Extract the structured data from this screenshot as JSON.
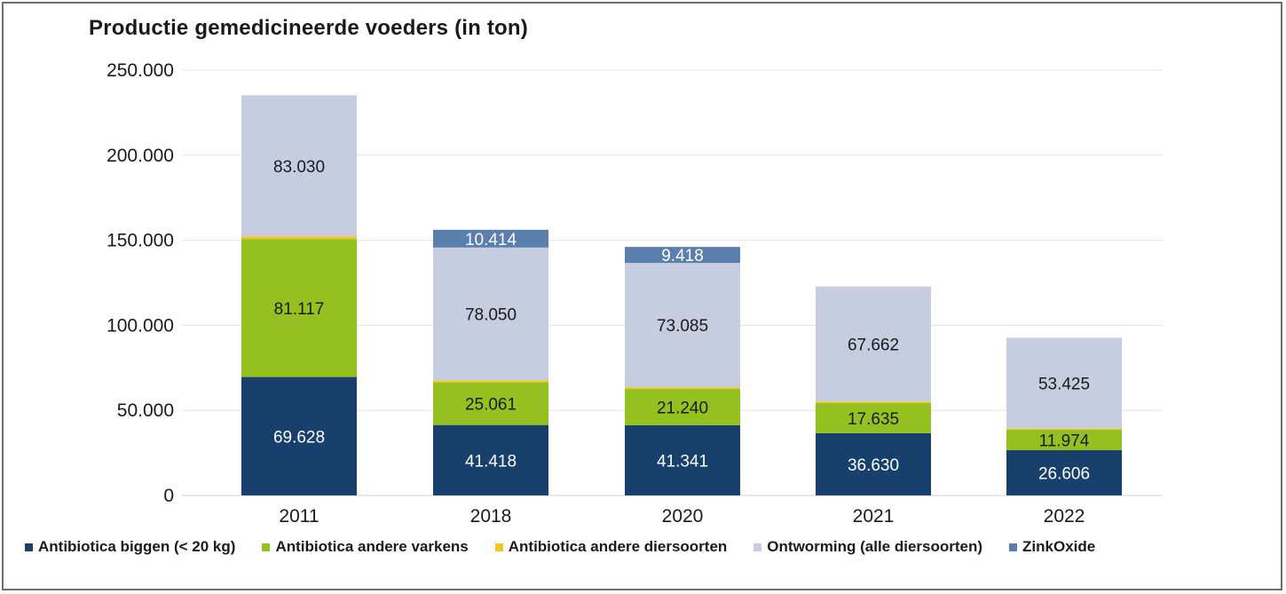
{
  "chart_data": {
    "type": "bar",
    "stacked": true,
    "title": "Productie gemedicineerde voeders (in ton)",
    "xlabel": "",
    "ylabel": "",
    "ylim": [
      0,
      250000
    ],
    "yticks": [
      0,
      50000,
      100000,
      150000,
      200000,
      250000
    ],
    "ytick_labels": [
      "0",
      "50.000",
      "100.000",
      "150.000",
      "200.000",
      "250.000"
    ],
    "categories": [
      "2011",
      "2018",
      "2020",
      "2021",
      "2022"
    ],
    "grid": true,
    "legend_position": "bottom",
    "series": [
      {
        "name": "Antibiotica biggen (< 20 kg)",
        "color": "#17406d",
        "values": [
          69628,
          41418,
          41341,
          36630,
          26606
        ],
        "labels": [
          "69.628",
          "41.418",
          "41.341",
          "36.630",
          "26.606"
        ]
      },
      {
        "name": "Antibiotica andere varkens",
        "color": "#94c11f",
        "values": [
          81117,
          25061,
          21240,
          17635,
          11974
        ],
        "labels": [
          "81.117",
          "25.061",
          "21.240",
          "17.635",
          "11.974"
        ]
      },
      {
        "name": "Antibiotica andere diersoorten",
        "color": "#f2c81e",
        "values": [
          1500,
          1200,
          1000,
          900,
          700
        ],
        "labels": [
          "",
          "",
          "",
          "",
          ""
        ]
      },
      {
        "name": "Ontworming (alle diersoorten)",
        "color": "#c6cde0",
        "values": [
          83030,
          78050,
          73085,
          67662,
          53425
        ],
        "labels": [
          "83.030",
          "78.050",
          "73.085",
          "67.662",
          "53.425"
        ]
      },
      {
        "name": "ZinkOxide",
        "color": "#5b7fad",
        "values": [
          0,
          10414,
          9418,
          0,
          0
        ],
        "labels": [
          "",
          "10.414",
          "9.418",
          "",
          ""
        ]
      }
    ]
  }
}
